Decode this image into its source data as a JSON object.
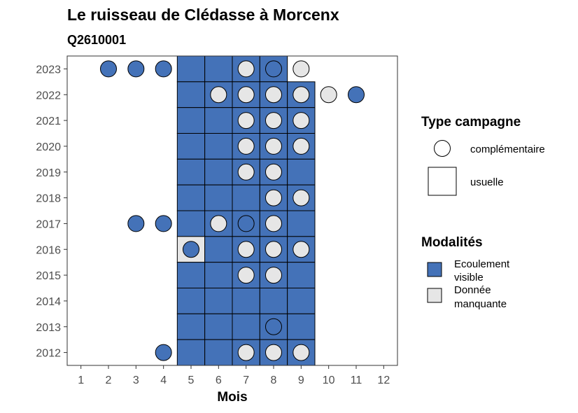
{
  "chart_data": {
    "type": "heatmap",
    "title": "Le ruisseau de Clédasse à Morcenx",
    "subtitle": "Q2610001",
    "xlabel": "Mois",
    "ylabel": "",
    "x_ticks": [
      "1",
      "2",
      "3",
      "4",
      "5",
      "6",
      "7",
      "8",
      "9",
      "10",
      "11",
      "12"
    ],
    "y_ticks": [
      "2012",
      "2013",
      "2014",
      "2015",
      "2016",
      "2017",
      "2018",
      "2019",
      "2020",
      "2021",
      "2022",
      "2023"
    ],
    "xlim": [
      0.5,
      12.5
    ],
    "ylim": [
      2011.5,
      2023.5
    ],
    "colors": {
      "ecoulement_visible": "#4472b8",
      "donnee_manquante": "#e6e6e6"
    },
    "legend": {
      "type_title": "Type campagne",
      "type_items": [
        {
          "label": "complémentaire",
          "shape": "circle"
        },
        {
          "label": "usuelle",
          "shape": "square"
        }
      ],
      "modalite_title": "Modalités",
      "modalite_items": [
        {
          "label": [
            "Ecoulement",
            "visible"
          ],
          "key": "ecoulement_visible"
        },
        {
          "label": [
            "Donnée",
            "manquante"
          ],
          "key": "donnee_manquante"
        }
      ]
    },
    "usuelle": [
      {
        "year": 2023,
        "months": [
          5,
          6,
          7,
          8
        ],
        "modalite": "ecoulement_visible"
      },
      {
        "year": 2022,
        "months": [
          5,
          6,
          7,
          8,
          9
        ],
        "modalite": "ecoulement_visible"
      },
      {
        "year": 2021,
        "months": [
          5,
          6,
          7,
          8,
          9
        ],
        "modalite": "ecoulement_visible"
      },
      {
        "year": 2020,
        "months": [
          5,
          6,
          7,
          8,
          9
        ],
        "modalite": "ecoulement_visible"
      },
      {
        "year": 2019,
        "months": [
          5,
          6,
          7,
          8,
          9
        ],
        "modalite": "ecoulement_visible"
      },
      {
        "year": 2018,
        "months": [
          5,
          6,
          7,
          8,
          9
        ],
        "modalite": "ecoulement_visible"
      },
      {
        "year": 2017,
        "months": [
          5,
          6,
          7,
          8,
          9
        ],
        "modalite": "ecoulement_visible"
      },
      {
        "year": 2016,
        "months": [
          5
        ],
        "modalite": "donnee_manquante"
      },
      {
        "year": 2016,
        "months": [
          6,
          7,
          8,
          9
        ],
        "modalite": "ecoulement_visible"
      },
      {
        "year": 2015,
        "months": [
          5,
          6,
          7,
          8,
          9
        ],
        "modalite": "ecoulement_visible"
      },
      {
        "year": 2014,
        "months": [
          5,
          6,
          7,
          8,
          9
        ],
        "modalite": "ecoulement_visible"
      },
      {
        "year": 2013,
        "months": [
          5,
          6,
          7,
          8,
          9
        ],
        "modalite": "ecoulement_visible"
      },
      {
        "year": 2012,
        "months": [
          5,
          6,
          7,
          8,
          9
        ],
        "modalite": "ecoulement_visible"
      }
    ],
    "complementaire": [
      {
        "year": 2023,
        "month": 2,
        "modalite": "ecoulement_visible"
      },
      {
        "year": 2023,
        "month": 3,
        "modalite": "ecoulement_visible"
      },
      {
        "year": 2023,
        "month": 4,
        "modalite": "ecoulement_visible"
      },
      {
        "year": 2023,
        "month": 7,
        "modalite": "donnee_manquante"
      },
      {
        "year": 2023,
        "month": 8,
        "modalite": "ecoulement_visible"
      },
      {
        "year": 2023,
        "month": 9,
        "modalite": "donnee_manquante"
      },
      {
        "year": 2022,
        "month": 6,
        "modalite": "donnee_manquante"
      },
      {
        "year": 2022,
        "month": 7,
        "modalite": "donnee_manquante"
      },
      {
        "year": 2022,
        "month": 8,
        "modalite": "donnee_manquante"
      },
      {
        "year": 2022,
        "month": 9,
        "modalite": "donnee_manquante"
      },
      {
        "year": 2022,
        "month": 10,
        "modalite": "donnee_manquante"
      },
      {
        "year": 2022,
        "month": 11,
        "modalite": "ecoulement_visible"
      },
      {
        "year": 2021,
        "month": 7,
        "modalite": "donnee_manquante"
      },
      {
        "year": 2021,
        "month": 8,
        "modalite": "donnee_manquante"
      },
      {
        "year": 2021,
        "month": 9,
        "modalite": "donnee_manquante"
      },
      {
        "year": 2020,
        "month": 7,
        "modalite": "donnee_manquante"
      },
      {
        "year": 2020,
        "month": 8,
        "modalite": "donnee_manquante"
      },
      {
        "year": 2020,
        "month": 9,
        "modalite": "donnee_manquante"
      },
      {
        "year": 2019,
        "month": 7,
        "modalite": "donnee_manquante"
      },
      {
        "year": 2019,
        "month": 8,
        "modalite": "donnee_manquante"
      },
      {
        "year": 2018,
        "month": 8,
        "modalite": "donnee_manquante"
      },
      {
        "year": 2018,
        "month": 9,
        "modalite": "donnee_manquante"
      },
      {
        "year": 2017,
        "month": 3,
        "modalite": "ecoulement_visible"
      },
      {
        "year": 2017,
        "month": 4,
        "modalite": "ecoulement_visible"
      },
      {
        "year": 2017,
        "month": 6,
        "modalite": "donnee_manquante"
      },
      {
        "year": 2017,
        "month": 7,
        "modalite": "ecoulement_visible"
      },
      {
        "year": 2017,
        "month": 8,
        "modalite": "donnee_manquante"
      },
      {
        "year": 2016,
        "month": 5,
        "modalite": "ecoulement_visible"
      },
      {
        "year": 2016,
        "month": 7,
        "modalite": "donnee_manquante"
      },
      {
        "year": 2016,
        "month": 8,
        "modalite": "donnee_manquante"
      },
      {
        "year": 2016,
        "month": 9,
        "modalite": "donnee_manquante"
      },
      {
        "year": 2015,
        "month": 7,
        "modalite": "donnee_manquante"
      },
      {
        "year": 2015,
        "month": 8,
        "modalite": "donnee_manquante"
      },
      {
        "year": 2013,
        "month": 8,
        "modalite": "ecoulement_visible"
      },
      {
        "year": 2012,
        "month": 4,
        "modalite": "ecoulement_visible"
      },
      {
        "year": 2012,
        "month": 7,
        "modalite": "donnee_manquante"
      },
      {
        "year": 2012,
        "month": 8,
        "modalite": "donnee_manquante"
      },
      {
        "year": 2012,
        "month": 9,
        "modalite": "donnee_manquante"
      }
    ]
  }
}
